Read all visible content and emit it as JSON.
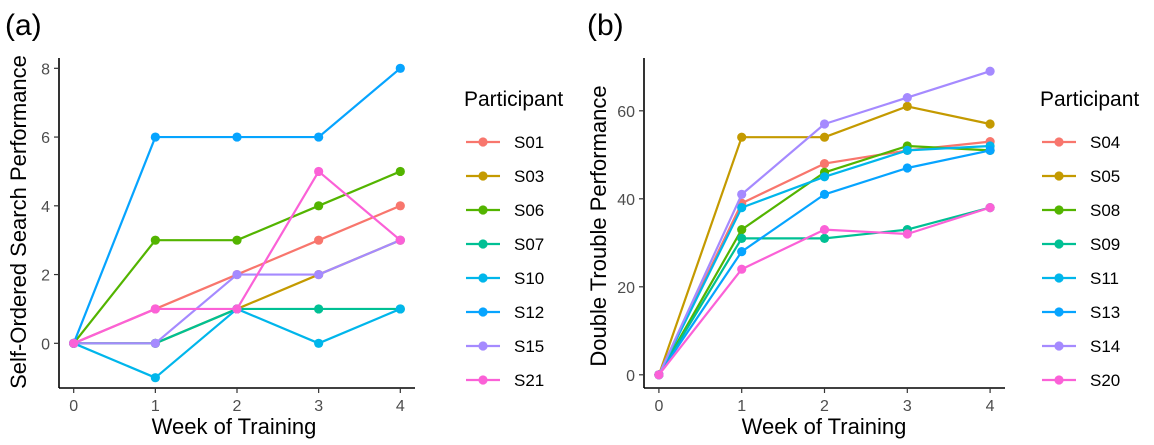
{
  "chart_data": [
    {
      "type": "line",
      "panel_label": "(a)",
      "xlabel": "Week of Training",
      "ylabel": "Self-Ordered Search Performance",
      "x": [
        0,
        1,
        2,
        3,
        4
      ],
      "xticks": [
        "0",
        "1",
        "2",
        "3",
        "4"
      ],
      "yticks": [
        "0",
        "2",
        "4",
        "6",
        "8"
      ],
      "ylim": [
        -1.3,
        8.3
      ],
      "legend_title": "Participant",
      "legend_position": "right",
      "series": [
        {
          "name": "S01",
          "color": "#F8766D",
          "values": [
            0,
            1,
            2,
            3,
            4
          ]
        },
        {
          "name": "S03",
          "color": "#C49A00",
          "values": [
            0,
            0,
            1,
            2,
            3
          ]
        },
        {
          "name": "S06",
          "color": "#53B400",
          "values": [
            0,
            3,
            3,
            4,
            5
          ]
        },
        {
          "name": "S07",
          "color": "#00C094",
          "values": [
            0,
            0,
            1,
            1,
            1
          ]
        },
        {
          "name": "S10",
          "color": "#00B6EB",
          "values": [
            0,
            -1,
            1,
            0,
            1
          ]
        },
        {
          "name": "S12",
          "color": "#06A4FF",
          "values": [
            0,
            6,
            6,
            6,
            8
          ]
        },
        {
          "name": "S15",
          "color": "#A58AFF",
          "values": [
            0,
            0,
            2,
            2,
            3
          ]
        },
        {
          "name": "S21",
          "color": "#FB61D7",
          "values": [
            0,
            1,
            1,
            5,
            3
          ]
        }
      ]
    },
    {
      "type": "line",
      "panel_label": "(b)",
      "xlabel": "Week of Training",
      "ylabel": "Double Trouble Performance",
      "x": [
        0,
        1,
        2,
        3,
        4
      ],
      "xticks": [
        "0",
        "1",
        "2",
        "3",
        "4"
      ],
      "yticks": [
        "0",
        "20",
        "40",
        "60"
      ],
      "ylim": [
        -3,
        72
      ],
      "legend_title": "Participant",
      "legend_position": "right",
      "series": [
        {
          "name": "S04",
          "color": "#F8766D",
          "values": [
            0,
            39,
            48,
            51,
            53
          ]
        },
        {
          "name": "S05",
          "color": "#C49A00",
          "values": [
            0,
            54,
            54,
            61,
            57
          ]
        },
        {
          "name": "S08",
          "color": "#53B400",
          "values": [
            0,
            33,
            46,
            52,
            51
          ]
        },
        {
          "name": "S09",
          "color": "#00C094",
          "values": [
            0,
            31,
            31,
            33,
            38
          ]
        },
        {
          "name": "S11",
          "color": "#00B6EB",
          "values": [
            0,
            38,
            45,
            51,
            52
          ]
        },
        {
          "name": "S13",
          "color": "#06A4FF",
          "values": [
            0,
            28,
            41,
            47,
            51
          ]
        },
        {
          "name": "S14",
          "color": "#A58AFF",
          "values": [
            0,
            41,
            57,
            63,
            69
          ]
        },
        {
          "name": "S20",
          "color": "#FB61D7",
          "values": [
            0,
            24,
            33,
            32,
            38
          ]
        }
      ]
    }
  ]
}
